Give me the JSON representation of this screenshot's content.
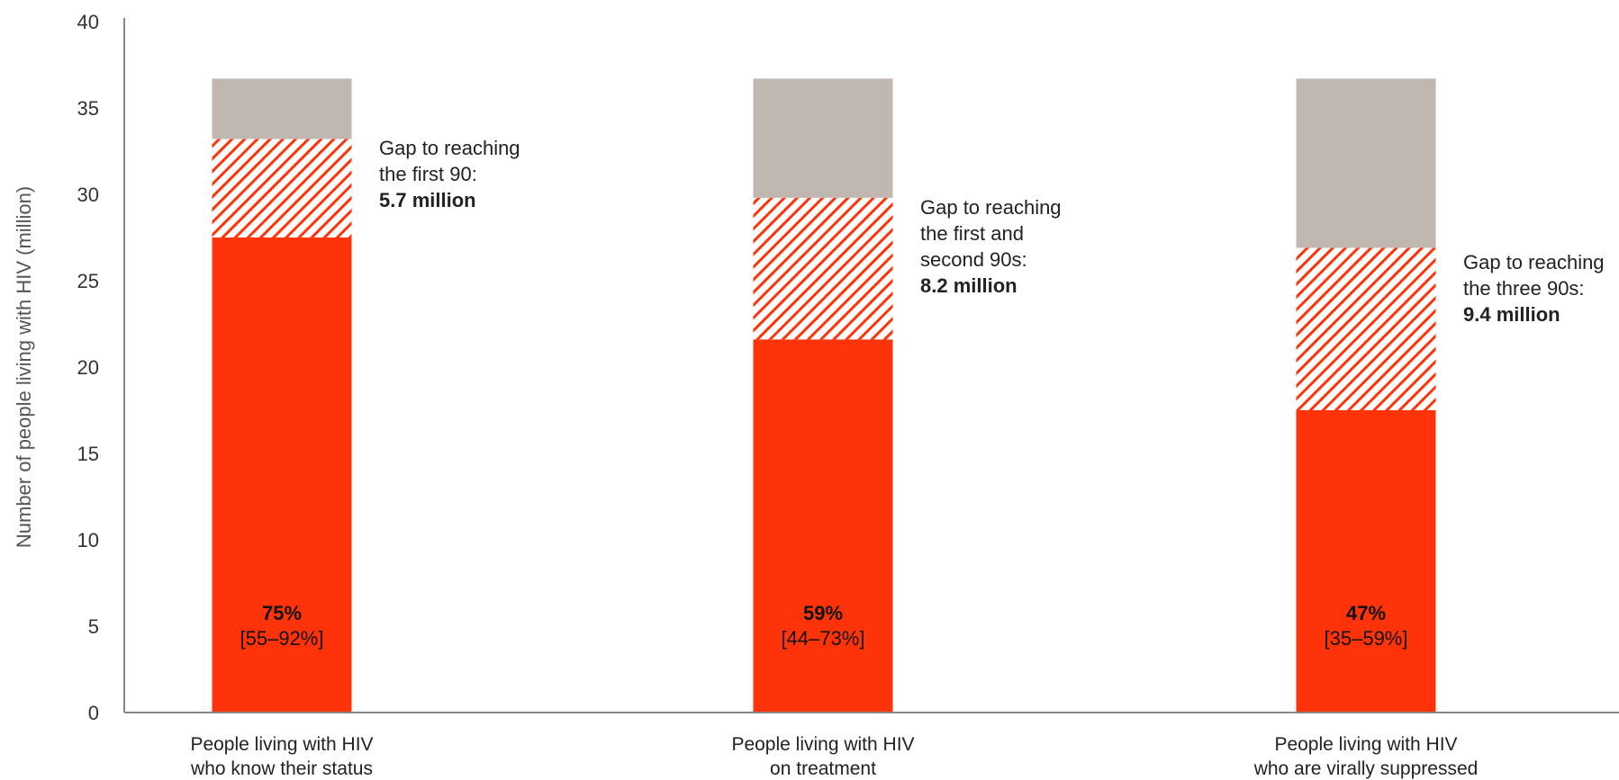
{
  "colors": {
    "achieved": "#ff330a",
    "gap": "#ff330a",
    "remaining": "#c1b7b1",
    "axis": "#888888"
  },
  "chart_data": {
    "type": "bar",
    "stacked": true,
    "title": "",
    "xlabel": "",
    "ylabel": "Number of people living with HIV (million)",
    "ylim": [
      0,
      40
    ],
    "yticks": [
      "0",
      "5",
      "10",
      "15",
      "20",
      "25",
      "30",
      "35",
      "40"
    ],
    "grid": false,
    "categories": [
      [
        "People living with HIV",
        "who know their status"
      ],
      [
        "People living with HIV",
        "on treatment"
      ],
      [
        "People living with HIV",
        "who are virally suppressed"
      ]
    ],
    "series": [
      {
        "fill": "solid",
        "values": [
          27.5,
          21.6,
          17.5
        ]
      },
      {
        "fill": "hatched",
        "values": [
          5.7,
          8.2,
          9.4
        ]
      },
      {
        "fill": "gray",
        "values": [
          3.5,
          6.9,
          9.8
        ]
      }
    ],
    "bar_labels": [
      {
        "percent": "75%",
        "range": "[55–92%]"
      },
      {
        "percent": "59%",
        "range": "[44–73%]"
      },
      {
        "percent": "47%",
        "range": "[35–59%]"
      }
    ],
    "annotations": [
      {
        "lines": [
          "Gap to reaching",
          "the first 90:"
        ],
        "value": "5.7 million"
      },
      {
        "lines": [
          "Gap to reaching",
          "the first and",
          "second 90s:"
        ],
        "value": "8.2 million"
      },
      {
        "lines": [
          "Gap to reaching",
          "the three 90s:"
        ],
        "value": "9.4 million"
      }
    ]
  }
}
